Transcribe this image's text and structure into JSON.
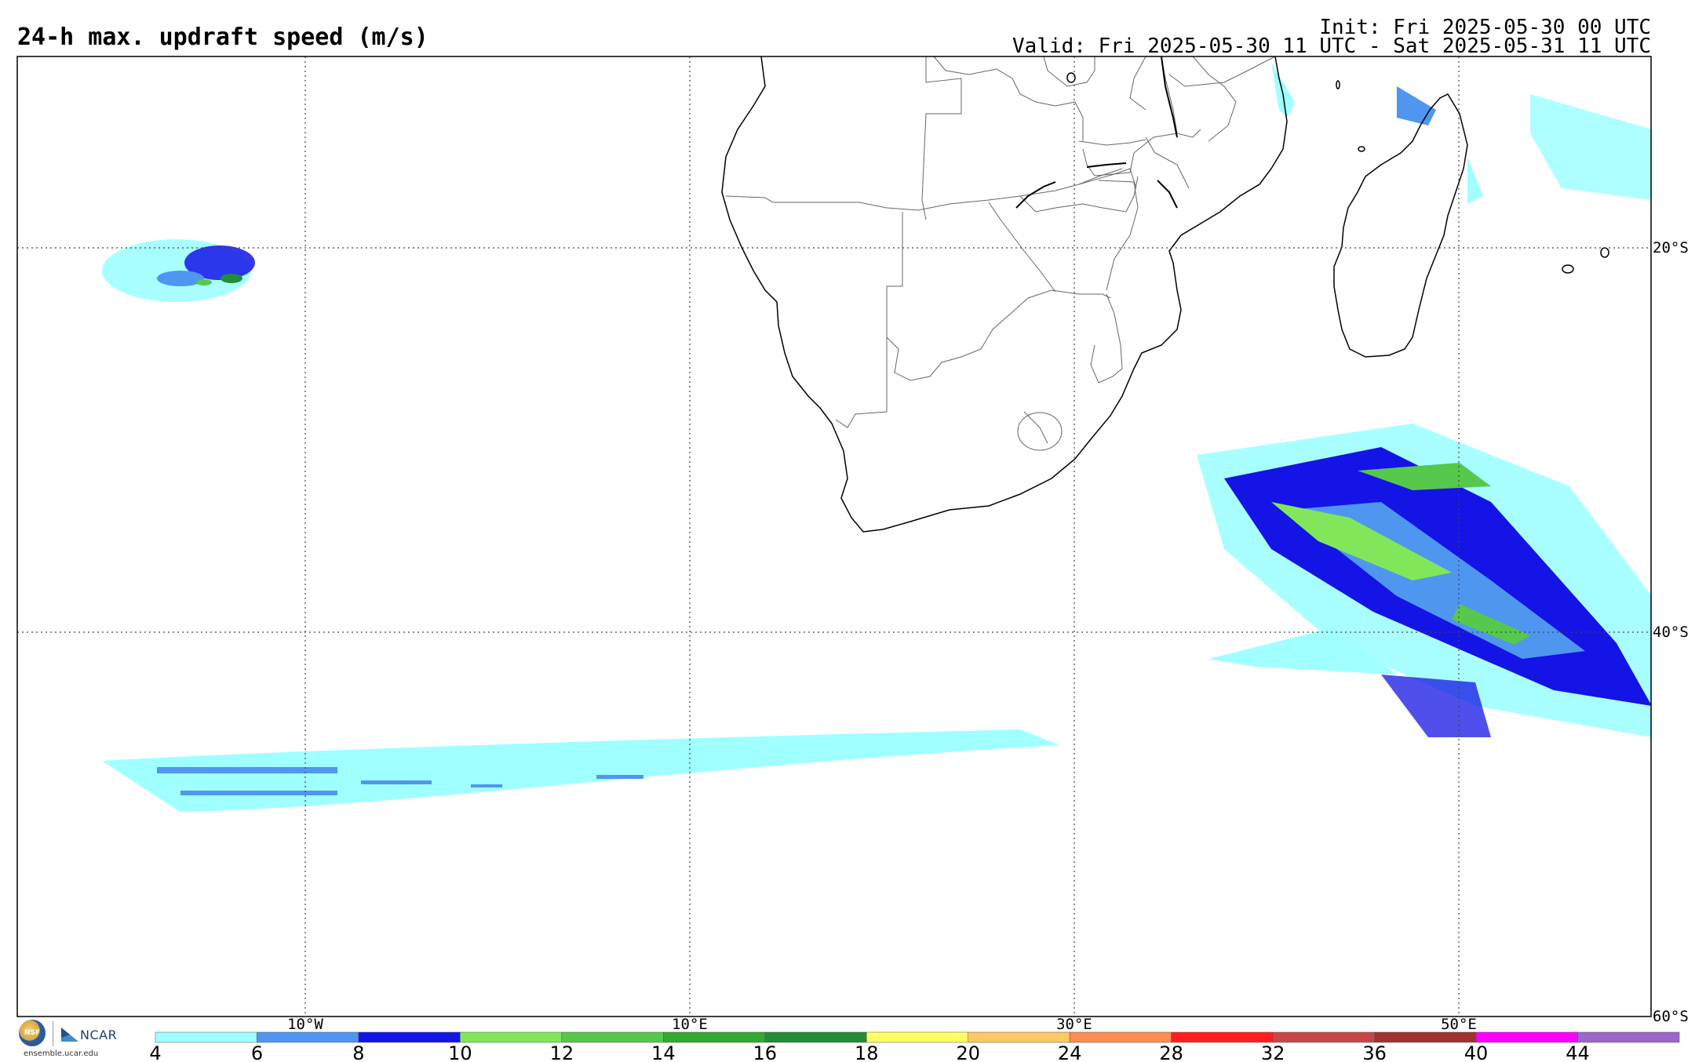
{
  "header": {
    "title": "24-h max. updraft speed (m/s)",
    "init": "Init: Fri 2025-05-30 00 UTC",
    "valid": "Valid: Fri 2025-05-30 11 UTC - Sat 2025-05-31 11 UTC"
  },
  "map": {
    "projection": "cylindrical",
    "grid": "dotted",
    "longitude_labels": [
      "10°W",
      "10°E",
      "30°E",
      "50°E"
    ],
    "latitude_labels": [
      "20°S",
      "40°S",
      "60°S"
    ],
    "features": [
      "coastlines",
      "country-borders",
      "lakes"
    ]
  },
  "colorbar": {
    "ticks": [
      "4",
      "6",
      "8",
      "10",
      "12",
      "14",
      "16",
      "18",
      "20",
      "24",
      "28",
      "32",
      "36",
      "40",
      "44"
    ],
    "colors": [
      "#a0ffff",
      "#4f96f0",
      "#1414e6",
      "#82e65a",
      "#56c84b",
      "#32aa32",
      "#228c37",
      "#ffff64",
      "#ffc864",
      "#ff8c50",
      "#ff1e1e",
      "#c84646",
      "#a03232",
      "#ff00ff",
      "#9966cc"
    ]
  },
  "branding": {
    "nsf": "NSF",
    "ncar": "NCAR",
    "url": "ensemble.ucar.edu"
  }
}
